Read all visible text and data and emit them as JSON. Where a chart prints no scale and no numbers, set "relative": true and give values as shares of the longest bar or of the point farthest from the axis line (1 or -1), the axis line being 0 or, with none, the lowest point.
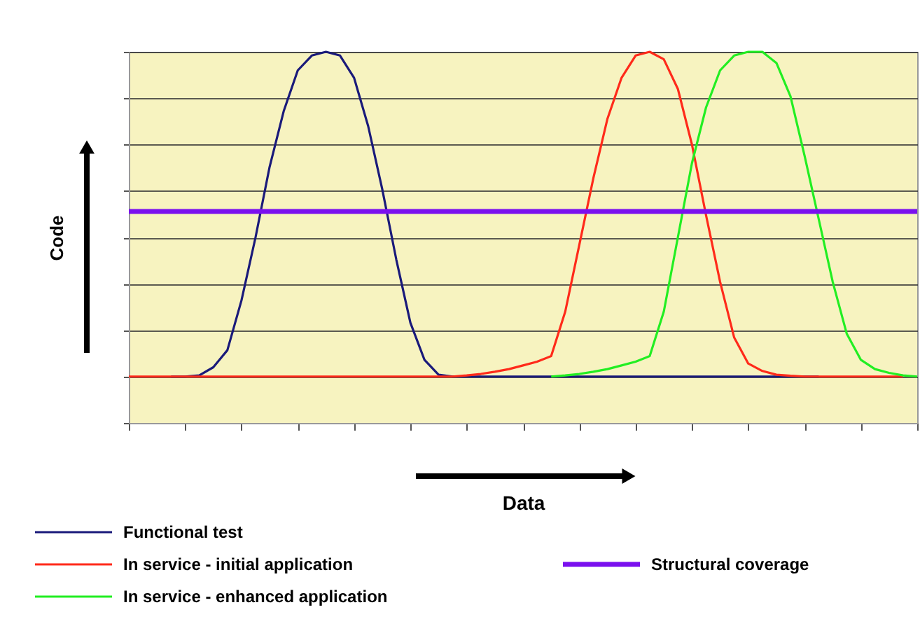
{
  "chart_data": {
    "type": "line",
    "relative": true,
    "xlabel": "Data",
    "ylabel": "Code",
    "grid": "y",
    "legend": "bottom",
    "marker": "none",
    "line_style": "solid",
    "categories": [
      null,
      null,
      null,
      null,
      null,
      null,
      null,
      null,
      null,
      null,
      null,
      null,
      null,
      null,
      null,
      null,
      null,
      null,
      null,
      null,
      null,
      null,
      null,
      null,
      null,
      null,
      null,
      null,
      null,
      null,
      null,
      null,
      null,
      null,
      null,
      null,
      null,
      null,
      null,
      null,
      null,
      null,
      null,
      null,
      null,
      null,
      null,
      null,
      null,
      null,
      null,
      null,
      null,
      null,
      null,
      null,
      null
    ],
    "series": [
      {
        "name": "Functional test",
        "color": "#1a1a7a",
        "values": [
          null,
          null,
          null,
          0.125,
          0.125,
          0.128,
          0.15,
          0.196,
          0.33,
          0.5,
          0.69,
          0.84,
          0.95,
          0.99,
          1,
          0.99,
          0.93,
          0.8,
          0.63,
          0.44,
          0.27,
          0.17,
          0.13,
          0.125,
          0.125,
          0.125,
          0.125,
          0.125,
          0.125,
          0.125,
          0.125,
          0.125,
          0.125,
          0.125,
          0.125,
          0.125,
          0.125,
          0.125,
          0.125,
          0.125,
          0.125,
          0.125,
          0.125,
          0.125,
          0.125,
          0.125,
          0.125,
          0.125,
          0.125,
          0.125,
          null,
          null,
          null,
          null,
          null,
          null,
          null
        ]
      },
      {
        "name": "In service - initial application",
        "color": "#ff2a1a",
        "values": [
          0.125,
          0.125,
          0.125,
          0.125,
          0.125,
          0.125,
          0.125,
          0.125,
          0.125,
          0.125,
          0.125,
          0.125,
          0.125,
          0.125,
          0.125,
          0.125,
          0.125,
          0.125,
          0.125,
          0.125,
          0.125,
          0.125,
          0.125,
          0.125,
          0.128,
          0.132,
          0.138,
          0.145,
          0.155,
          0.165,
          0.18,
          0.3,
          0.48,
          0.66,
          0.82,
          0.93,
          0.99,
          1,
          0.98,
          0.9,
          0.75,
          0.56,
          0.38,
          0.23,
          0.16,
          0.14,
          0.13,
          0.127,
          0.125,
          0.125,
          0.125,
          0.125,
          0.125,
          0.125,
          0.125,
          0.125,
          null
        ]
      },
      {
        "name": "In service - enhanced application",
        "color": "#22ee22",
        "values": [
          null,
          null,
          null,
          null,
          null,
          null,
          null,
          null,
          null,
          null,
          null,
          null,
          null,
          null,
          null,
          null,
          null,
          null,
          null,
          null,
          null,
          null,
          null,
          null,
          null,
          null,
          null,
          null,
          null,
          null,
          0.125,
          0.128,
          0.132,
          0.138,
          0.145,
          0.155,
          0.165,
          0.18,
          0.3,
          0.5,
          0.7,
          0.85,
          0.95,
          0.99,
          1,
          1,
          0.97,
          0.88,
          0.72,
          0.55,
          0.38,
          0.24,
          0.17,
          0.145,
          0.135,
          0.128,
          0.125
        ]
      },
      {
        "name": "Structural coverage",
        "color": "#7a10ee",
        "values": [
          0.57,
          0.57,
          0.57,
          0.57,
          0.57,
          0.57,
          0.57,
          0.57,
          0.57,
          0.57,
          0.57,
          0.57,
          0.57,
          0.57,
          0.57,
          0.57,
          0.57,
          0.57,
          0.57,
          0.57,
          0.57,
          0.57,
          0.57,
          0.57,
          0.57,
          0.57,
          0.57,
          0.57,
          0.57,
          0.57,
          0.57,
          0.57,
          0.57,
          0.57,
          0.57,
          0.57,
          0.57,
          0.57,
          0.57,
          0.57,
          0.57,
          0.57,
          0.57,
          0.57,
          0.57,
          0.57,
          0.57,
          0.57,
          0.57,
          0.57,
          0.57,
          0.57,
          0.57,
          0.57,
          0.57,
          0.57,
          0.57
        ]
      }
    ]
  }
}
